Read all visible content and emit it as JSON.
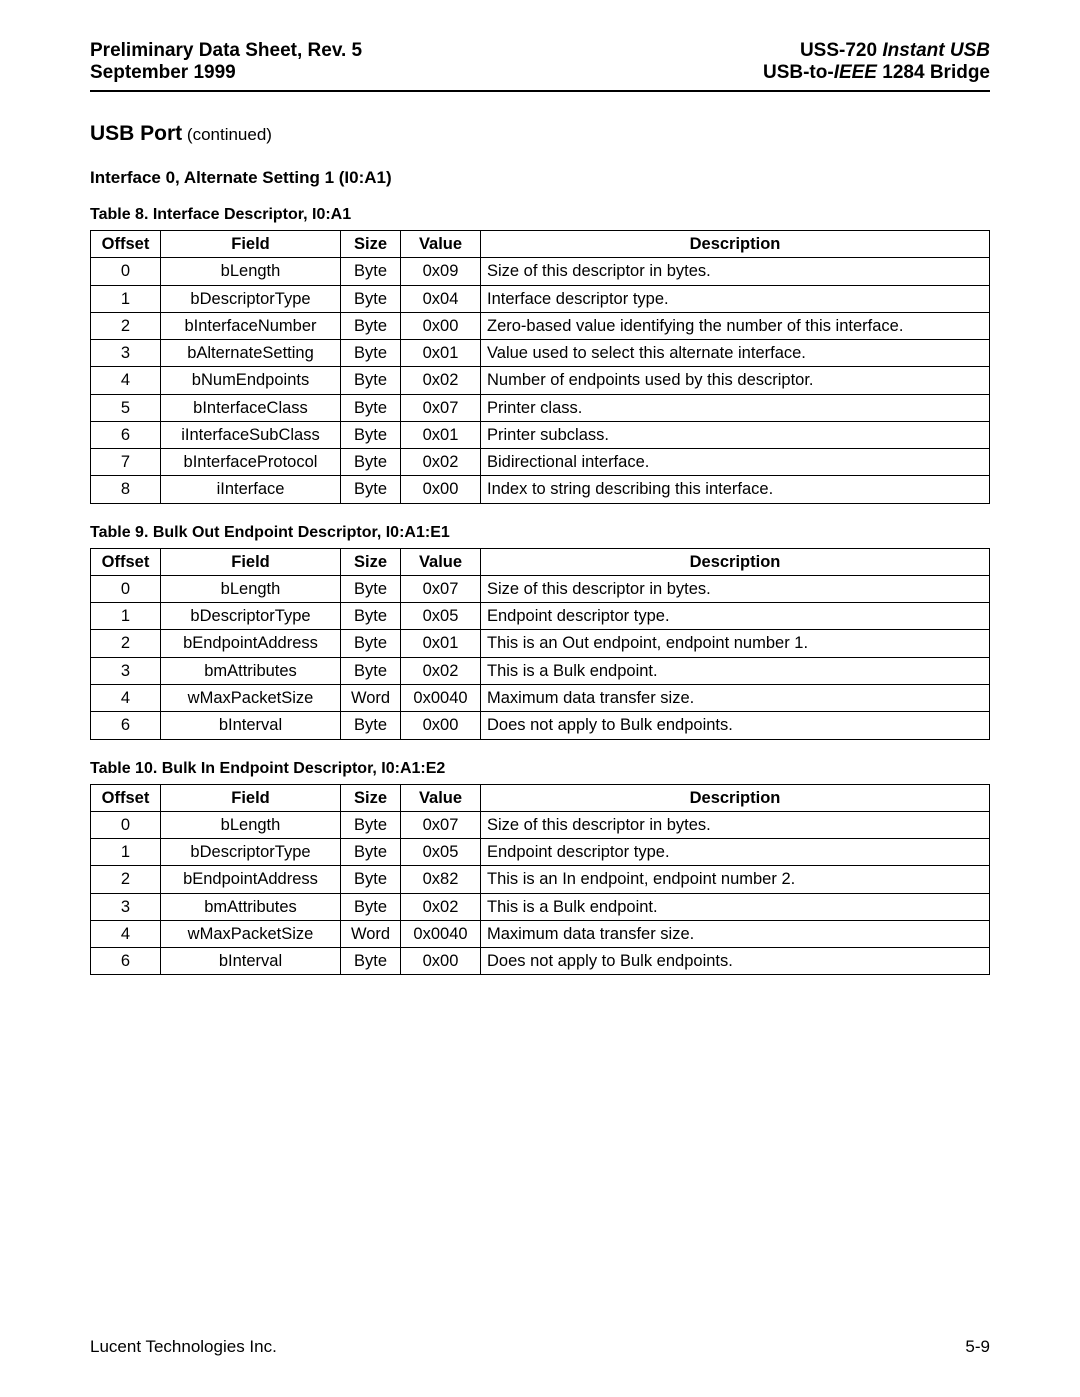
{
  "header": {
    "left_line1": "Preliminary Data Sheet, Rev. 5",
    "left_line2": "September 1999",
    "right_line1_a": "USS-720 ",
    "right_line1_b": "Instant USB",
    "right_line2_a": "USB-to-",
    "right_line2_b": "IEEE",
    "right_line2_c": " 1284 Bridge"
  },
  "section": {
    "title": "USB Port",
    "continued": " (continued)",
    "subheading": "Interface 0, Alternate Setting 1 (I0:A1)"
  },
  "headers": {
    "offset": "Offset",
    "field": "Field",
    "size": "Size",
    "value": "Value",
    "description": "Description"
  },
  "tables": [
    {
      "caption": "Table 8. Interface Descriptor, I0:A1",
      "rows": [
        {
          "offset": "0",
          "field": "bLength",
          "size": "Byte",
          "value": "0x09",
          "desc": "Size of this descriptor in bytes."
        },
        {
          "offset": "1",
          "field": "bDescriptorType",
          "size": "Byte",
          "value": "0x04",
          "desc": "Interface descriptor type."
        },
        {
          "offset": "2",
          "field": "bInterfaceNumber",
          "size": "Byte",
          "value": "0x00",
          "desc": "Zero-based value identifying the number of this interface."
        },
        {
          "offset": "3",
          "field": "bAlternateSetting",
          "size": "Byte",
          "value": "0x01",
          "desc": "Value used to select this alternate interface."
        },
        {
          "offset": "4",
          "field": "bNumEndpoints",
          "size": "Byte",
          "value": "0x02",
          "desc": "Number of endpoints used by this descriptor."
        },
        {
          "offset": "5",
          "field": "bInterfaceClass",
          "size": "Byte",
          "value": "0x07",
          "desc": "Printer class."
        },
        {
          "offset": "6",
          "field": "iInterfaceSubClass",
          "size": "Byte",
          "value": "0x01",
          "desc": "Printer subclass."
        },
        {
          "offset": "7",
          "field": "bInterfaceProtocol",
          "size": "Byte",
          "value": "0x02",
          "desc": "Bidirectional interface."
        },
        {
          "offset": "8",
          "field": "iInterface",
          "size": "Byte",
          "value": "0x00",
          "desc": "Index to string describing this interface."
        }
      ]
    },
    {
      "caption": "Table 9. Bulk Out Endpoint Descriptor, I0:A1:E1",
      "rows": [
        {
          "offset": "0",
          "field": "bLength",
          "size": "Byte",
          "value": "0x07",
          "desc": "Size of this descriptor in bytes."
        },
        {
          "offset": "1",
          "field": "bDescriptorType",
          "size": "Byte",
          "value": "0x05",
          "desc": "Endpoint descriptor type."
        },
        {
          "offset": "2",
          "field": "bEndpointAddress",
          "size": "Byte",
          "value": "0x01",
          "desc": "This is an Out endpoint, endpoint number 1."
        },
        {
          "offset": "3",
          "field": "bmAttributes",
          "size": "Byte",
          "value": "0x02",
          "desc": "This is a Bulk endpoint."
        },
        {
          "offset": "4",
          "field": "wMaxPacketSize",
          "size": "Word",
          "value": "0x0040",
          "desc": "Maximum data transfer size."
        },
        {
          "offset": "6",
          "field": "bInterval",
          "size": "Byte",
          "value": "0x00",
          "desc": "Does not apply to Bulk endpoints."
        }
      ]
    },
    {
      "caption": "Table 10. Bulk In Endpoint Descriptor, I0:A1:E2",
      "rows": [
        {
          "offset": "0",
          "field": "bLength",
          "size": "Byte",
          "value": "0x07",
          "desc": "Size of this descriptor in bytes."
        },
        {
          "offset": "1",
          "field": "bDescriptorType",
          "size": "Byte",
          "value": "0x05",
          "desc": "Endpoint descriptor type."
        },
        {
          "offset": "2",
          "field": "bEndpointAddress",
          "size": "Byte",
          "value": "0x82",
          "desc": "This is an In endpoint, endpoint number 2."
        },
        {
          "offset": "3",
          "field": "bmAttributes",
          "size": "Byte",
          "value": "0x02",
          "desc": "This is a Bulk endpoint."
        },
        {
          "offset": "4",
          "field": "wMaxPacketSize",
          "size": "Word",
          "value": "0x0040",
          "desc": "Maximum data transfer size."
        },
        {
          "offset": "6",
          "field": "bInterval",
          "size": "Byte",
          "value": "0x00",
          "desc": "Does not apply to Bulk endpoints."
        }
      ]
    }
  ],
  "footer": {
    "left": "Lucent Technologies Inc.",
    "right": "5-9"
  }
}
